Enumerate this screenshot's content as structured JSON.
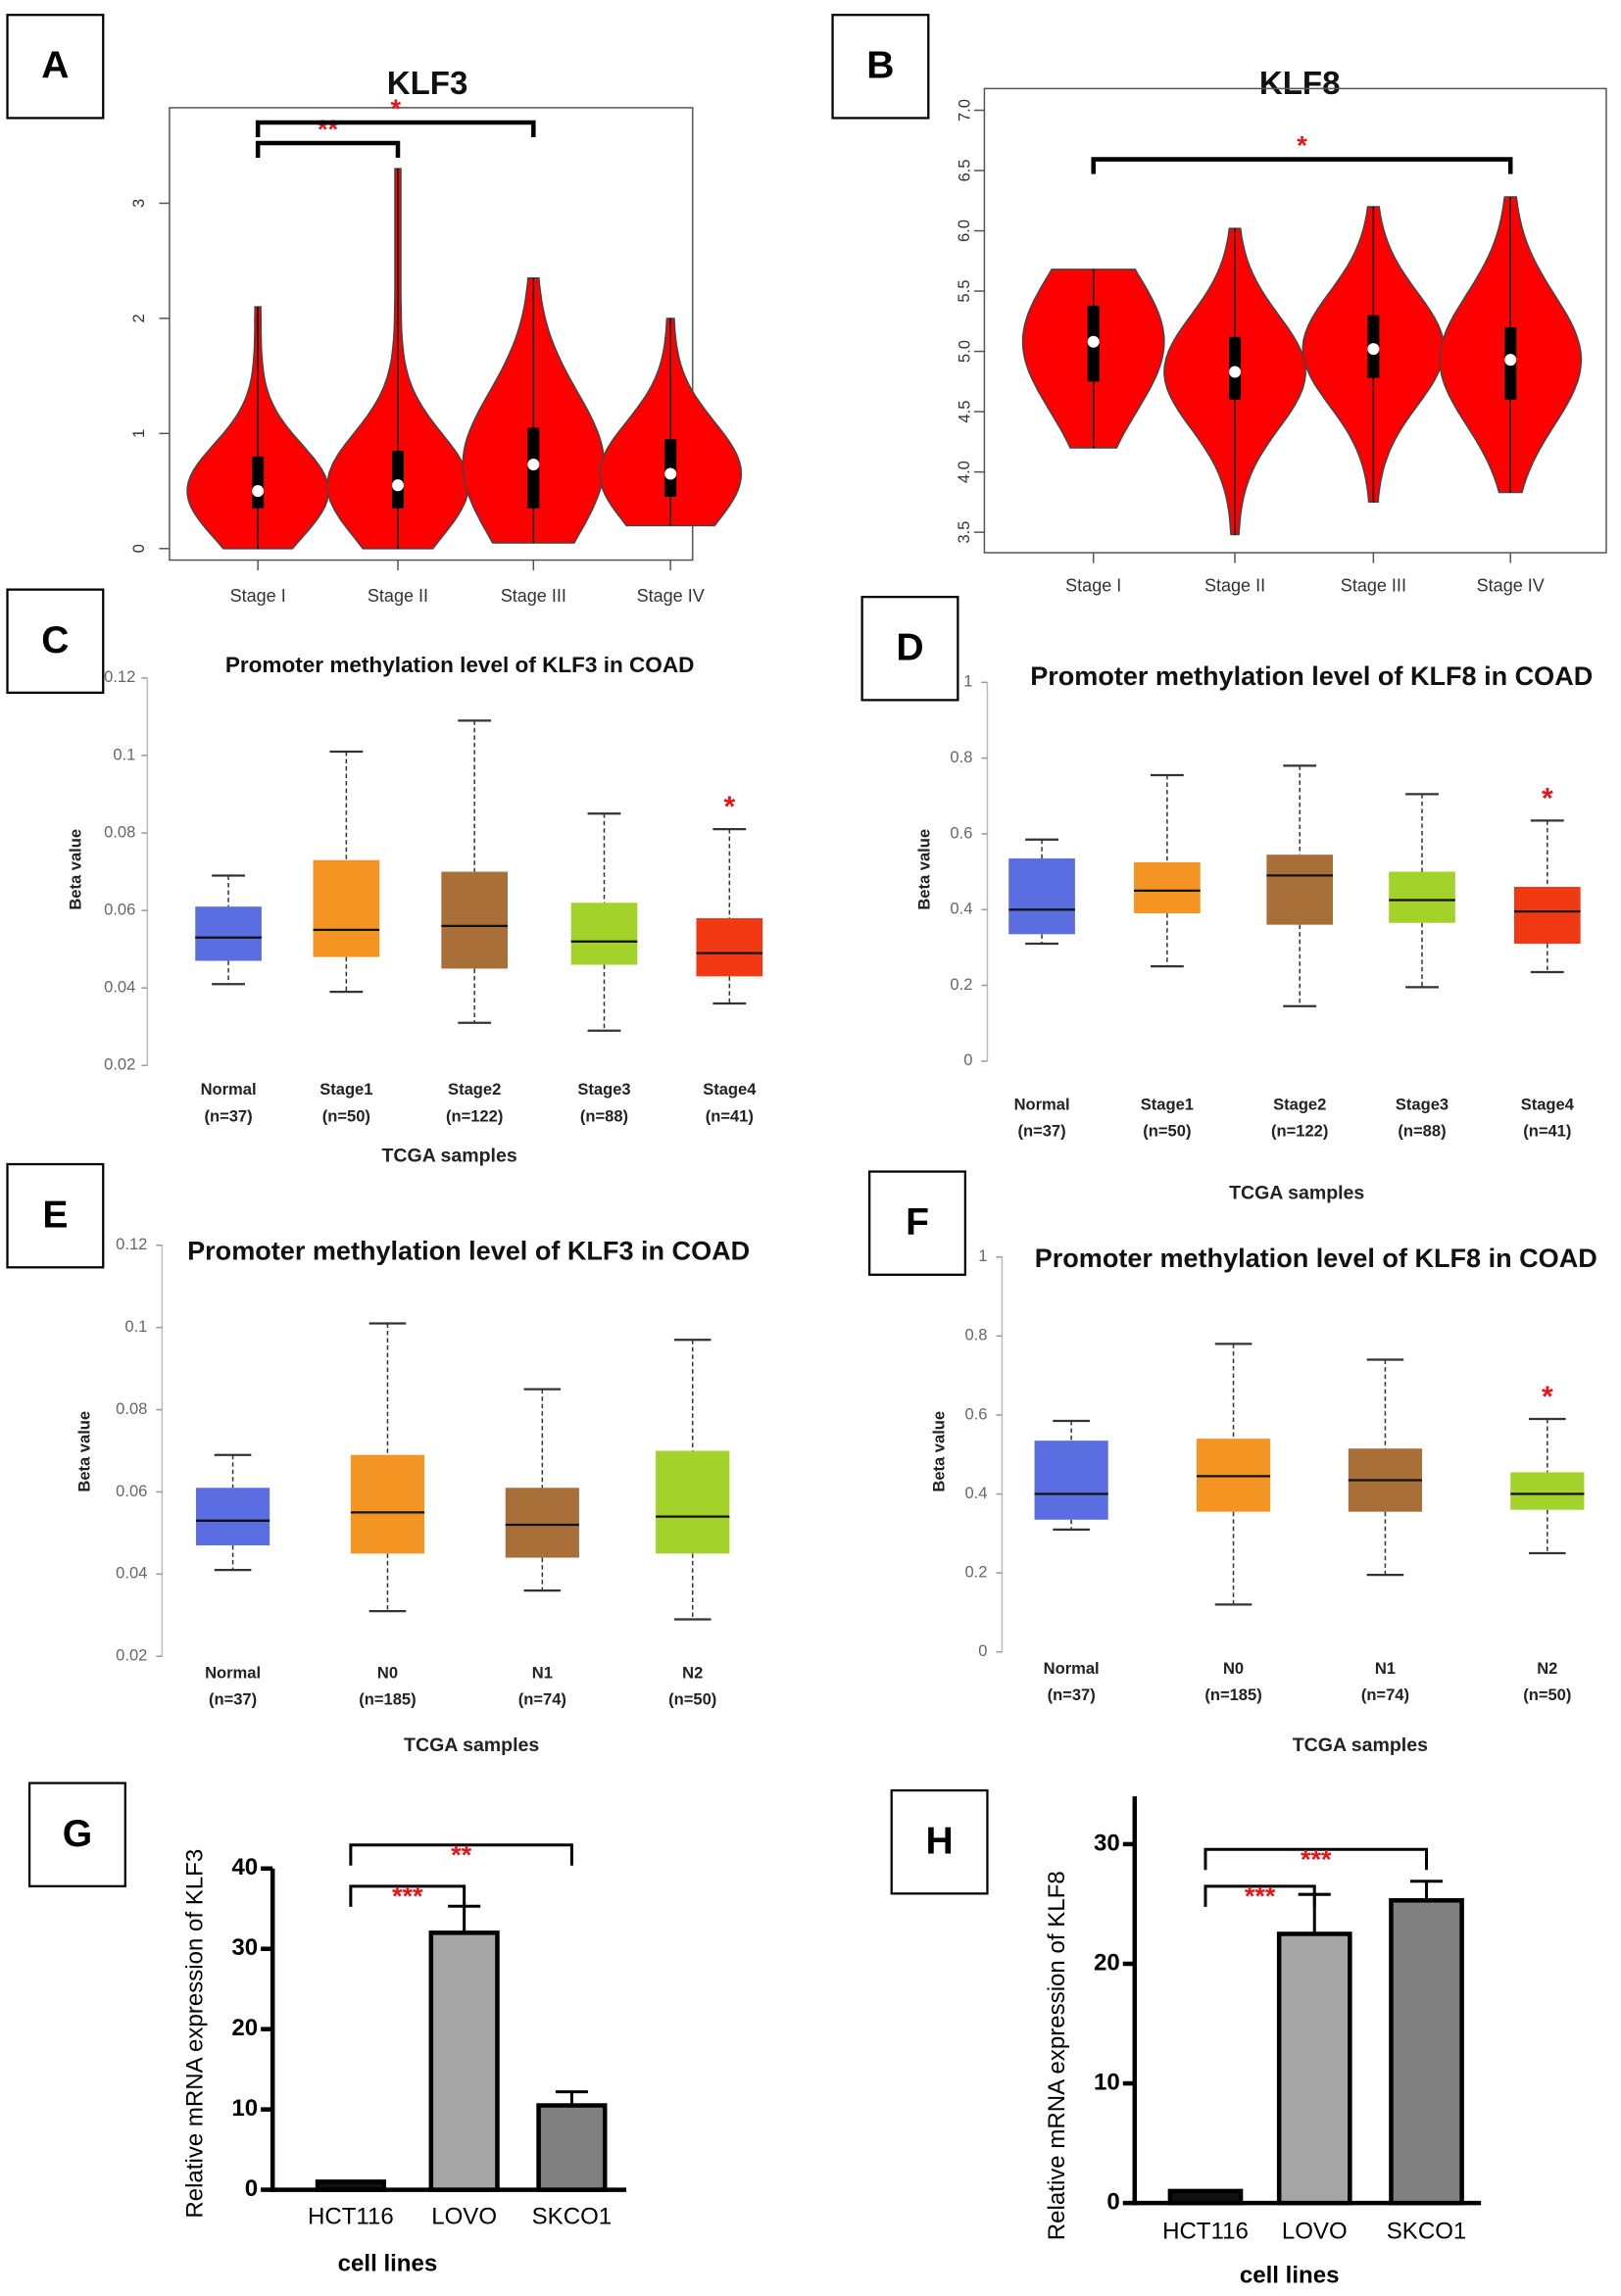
{
  "chart_data": [
    {
      "type": "violin",
      "panel": "A",
      "title": "KLF3",
      "categories": [
        "Stage I",
        "Stage II",
        "Stage III",
        "Stage IV"
      ],
      "color": "#ff0000",
      "stats": [
        {
          "min": 0,
          "q1": 0.35,
          "median": 0.5,
          "q3": 0.8,
          "max": 2.1
        },
        {
          "min": 0,
          "q1": 0.35,
          "median": 0.55,
          "q3": 0.85,
          "max": 3.3
        },
        {
          "min": 0.05,
          "q1": 0.35,
          "median": 0.73,
          "q3": 1.05,
          "max": 2.35
        },
        {
          "min": 0.2,
          "q1": 0.45,
          "median": 0.65,
          "q3": 0.95,
          "max": 2.0
        }
      ],
      "ylim": [
        -0.1,
        3.83
      ],
      "yticks": [
        0,
        1,
        2,
        3
      ],
      "annotation_color": "#e8141a",
      "significance": [
        {
          "between": [
            "Stage I",
            "Stage II"
          ],
          "label": "**"
        },
        {
          "between": [
            "Stage I",
            "Stage III"
          ],
          "label": "*"
        }
      ]
    },
    {
      "type": "violin",
      "panel": "B",
      "title": "KLF8",
      "categories": [
        "Stage I",
        "Stage II",
        "Stage III",
        "Stage IV"
      ],
      "color": "#ff0000",
      "stats": [
        {
          "min": 4.2,
          "q1": 4.75,
          "median": 5.08,
          "q3": 5.38,
          "max": 5.68
        },
        {
          "min": 3.48,
          "q1": 4.6,
          "median": 4.83,
          "q3": 5.12,
          "max": 6.02
        },
        {
          "min": 3.75,
          "q1": 4.78,
          "median": 5.02,
          "q3": 5.3,
          "max": 6.2
        },
        {
          "min": 3.83,
          "q1": 4.6,
          "median": 4.93,
          "q3": 5.2,
          "max": 6.28
        }
      ],
      "ylim": [
        3.33,
        7.18
      ],
      "yticks": [
        3.5,
        {
          "value": 4,
          "label": "4.0"
        },
        4.5,
        {
          "value": 5,
          "label": "5.0"
        },
        5.5,
        {
          "value": 6,
          "label": "6.0"
        },
        6.5,
        {
          "value": 7,
          "label": "7.0"
        }
      ],
      "annotation_color": "#e8141a",
      "significance": [
        {
          "between": [
            "Stage I",
            "Stage IV"
          ],
          "label": "*"
        }
      ]
    },
    {
      "type": "box",
      "panel": "C",
      "title": "Promoter methylation level of KLF3 in COAD",
      "y_label": "Beta value",
      "x_label": "TCGA samples",
      "categories": [
        "Normal",
        "Stage1",
        "Stage2",
        "Stage3",
        "Stage4"
      ],
      "n_labels": [
        "(n=37)",
        "(n=50)",
        "(n=122)",
        "(n=88)",
        "(n=41)"
      ],
      "colors": [
        "#5b6ee1",
        "#f39423",
        "#a87038",
        "#a3d22b",
        "#f13a13"
      ],
      "boxes": [
        {
          "min": 0.041,
          "q1": 0.047,
          "median": 0.053,
          "q3": 0.061,
          "max": 0.069
        },
        {
          "min": 0.039,
          "q1": 0.048,
          "median": 0.055,
          "q3": 0.073,
          "max": 0.101
        },
        {
          "min": 0.031,
          "q1": 0.045,
          "median": 0.056,
          "q3": 0.07,
          "max": 0.109
        },
        {
          "min": 0.029,
          "q1": 0.046,
          "median": 0.052,
          "q3": 0.062,
          "max": 0.085
        },
        {
          "min": 0.036,
          "q1": 0.043,
          "median": 0.049,
          "q3": 0.058,
          "max": 0.081
        }
      ],
      "ylim": [
        0.02,
        0.12
      ],
      "yticks": [
        0.02,
        0.04,
        0.06,
        0.08,
        0.1,
        0.12
      ],
      "annotation_color": "#e8141a",
      "annotations": [
        {
          "category": "Stage4",
          "text": "*"
        }
      ]
    },
    {
      "type": "box",
      "panel": "D",
      "title": "Promoter methylation level of KLF8 in COAD",
      "y_label": "Beta value",
      "x_label": "TCGA samples",
      "categories": [
        "Normal",
        "Stage1",
        "Stage2",
        "Stage3",
        "Stage4"
      ],
      "n_labels": [
        "(n=37)",
        "(n=50)",
        "(n=122)",
        "(n=88)",
        "(n=41)"
      ],
      "colors": [
        "#5b6ee1",
        "#f39423",
        "#a87038",
        "#a3d22b",
        "#f13a13"
      ],
      "boxes": [
        {
          "min": 0.31,
          "q1": 0.335,
          "median": 0.4,
          "q3": 0.535,
          "max": 0.585
        },
        {
          "min": 0.25,
          "q1": 0.39,
          "median": 0.45,
          "q3": 0.525,
          "max": 0.755
        },
        {
          "min": 0.145,
          "q1": 0.36,
          "median": 0.49,
          "q3": 0.545,
          "max": 0.78
        },
        {
          "min": 0.195,
          "q1": 0.365,
          "median": 0.425,
          "q3": 0.5,
          "max": 0.705
        },
        {
          "min": 0.235,
          "q1": 0.31,
          "median": 0.395,
          "q3": 0.46,
          "max": 0.635
        }
      ],
      "ylim": [
        0,
        1
      ],
      "yticks": [
        0,
        0.2,
        0.4,
        0.6,
        0.8,
        1
      ],
      "annotation_color": "#e8141a",
      "annotations": [
        {
          "category": "Stage4",
          "text": "*"
        }
      ]
    },
    {
      "type": "box",
      "panel": "E",
      "title": "Promoter methylation level of KLF3 in COAD",
      "y_label": "Beta value",
      "x_label": "TCGA samples",
      "categories": [
        "Normal",
        "N0",
        "N1",
        "N2"
      ],
      "n_labels": [
        "(n=37)",
        "(n=185)",
        "(n=74)",
        "(n=50)"
      ],
      "colors": [
        "#5b6ee1",
        "#f39423",
        "#a87038",
        "#a3d22b"
      ],
      "boxes": [
        {
          "min": 0.041,
          "q1": 0.047,
          "median": 0.053,
          "q3": 0.061,
          "max": 0.069
        },
        {
          "min": 0.031,
          "q1": 0.045,
          "median": 0.055,
          "q3": 0.069,
          "max": 0.101
        },
        {
          "min": 0.036,
          "q1": 0.044,
          "median": 0.052,
          "q3": 0.061,
          "max": 0.085
        },
        {
          "min": 0.029,
          "q1": 0.045,
          "median": 0.054,
          "q3": 0.07,
          "max": 0.097
        }
      ],
      "ylim": [
        0.02,
        0.12
      ],
      "yticks": [
        0.02,
        0.04,
        0.06,
        0.08,
        0.1,
        0.12
      ],
      "annotation_color": "#e8141a",
      "annotations": []
    },
    {
      "type": "box",
      "panel": "F",
      "title": "Promoter methylation level of KLF8 in COAD",
      "y_label": "Beta value",
      "x_label": "TCGA samples",
      "categories": [
        "Normal",
        "N0",
        "N1",
        "N2"
      ],
      "n_labels": [
        "(n=37)",
        "(n=185)",
        "(n=74)",
        "(n=50)"
      ],
      "colors": [
        "#5b6ee1",
        "#f39423",
        "#a87038",
        "#a3d22b"
      ],
      "boxes": [
        {
          "min": 0.31,
          "q1": 0.335,
          "median": 0.4,
          "q3": 0.535,
          "max": 0.585
        },
        {
          "min": 0.12,
          "q1": 0.355,
          "median": 0.445,
          "q3": 0.54,
          "max": 0.78
        },
        {
          "min": 0.195,
          "q1": 0.355,
          "median": 0.435,
          "q3": 0.515,
          "max": 0.74
        },
        {
          "min": 0.25,
          "q1": 0.36,
          "median": 0.4,
          "q3": 0.455,
          "max": 0.59
        }
      ],
      "ylim": [
        0,
        1
      ],
      "yticks": [
        0,
        0.2,
        0.4,
        0.6,
        0.8,
        1
      ],
      "annotation_color": "#e8141a",
      "annotations": [
        {
          "category": "N2",
          "text": "*"
        }
      ]
    },
    {
      "type": "bar",
      "panel": "G",
      "y_label": "Relative mRNA expression of KLF3",
      "x_label": "cell lines",
      "categories": [
        "HCT116",
        "LOVO",
        "SKCO1"
      ],
      "values": [
        1,
        32,
        10.5
      ],
      "errors": [
        0,
        3.3,
        1.7
      ],
      "colors": [
        "#111111",
        "#a6a6a6",
        "#808080"
      ],
      "ylim": [
        0,
        40
      ],
      "yticks": [
        0,
        10,
        20,
        30,
        40
      ],
      "annotation_color": "#e8141a",
      "significance": [
        {
          "between": [
            "HCT116",
            "LOVO"
          ],
          "label": "***"
        },
        {
          "between": [
            "HCT116",
            "SKCO1"
          ],
          "label": "**"
        }
      ]
    },
    {
      "type": "bar",
      "panel": "H",
      "y_label": "Relative mRNA expression of KLF8",
      "x_label": "cell lines",
      "categories": [
        "HCT116",
        "LOVO",
        "SKCO1"
      ],
      "values": [
        1,
        22.5,
        25.3
      ],
      "errors": [
        0,
        3.3,
        1.6
      ],
      "colors": [
        "#111111",
        "#a6a6a6",
        "#808080"
      ],
      "ylim": [
        0,
        34
      ],
      "yticks": [
        0,
        10,
        20,
        30
      ],
      "annotation_color": "#e8141a",
      "significance": [
        {
          "between": [
            "HCT116",
            "LOVO"
          ],
          "label": "***"
        },
        {
          "between": [
            "HCT116",
            "SKCO1"
          ],
          "label": "***"
        }
      ]
    }
  ]
}
